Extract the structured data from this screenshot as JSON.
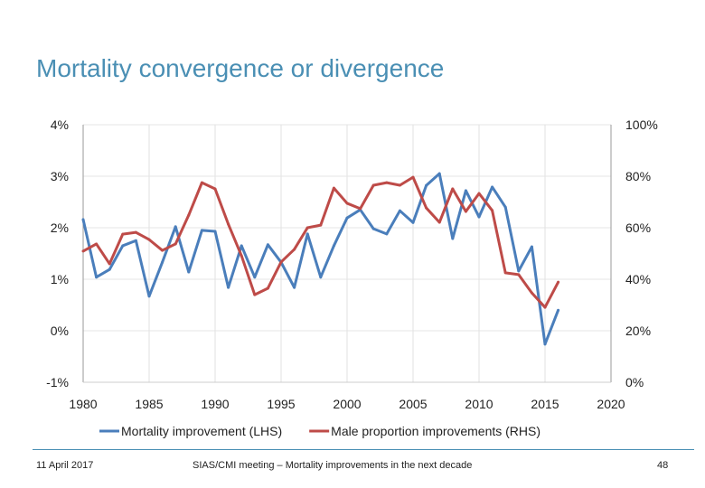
{
  "slide": {
    "title": "Mortality convergence or divergence",
    "footer_date": "11 April 2017",
    "footer_text": "SIAS/CMI meeting – Mortality improvements in the next decade",
    "page_number": "48",
    "accent_color": "#4a8fb4"
  },
  "chart_data": {
    "type": "line",
    "x": [
      1980,
      1981,
      1982,
      1983,
      1984,
      1985,
      1986,
      1987,
      1988,
      1989,
      1990,
      1991,
      1992,
      1993,
      1994,
      1995,
      1996,
      1997,
      1998,
      1999,
      2000,
      2001,
      2002,
      2003,
      2004,
      2005,
      2006,
      2007,
      2008,
      2009,
      2010,
      2011,
      2012,
      2013,
      2014,
      2015,
      2016
    ],
    "xlim": [
      1980,
      2020
    ],
    "xticks": [
      "1980",
      "1985",
      "1990",
      "1995",
      "2000",
      "2005",
      "2010",
      "2015",
      "2020"
    ],
    "ylim_left": [
      -1,
      4
    ],
    "yticks_left": [
      "-1%",
      "0%",
      "1%",
      "2%",
      "3%",
      "4%"
    ],
    "ylim_right": [
      0,
      100
    ],
    "yticks_right": [
      "0%",
      "20%",
      "40%",
      "60%",
      "80%",
      "100%"
    ],
    "grid": true,
    "legend_position": "bottom",
    "series": [
      {
        "name": "Mortality improvement (LHS)",
        "axis": "left",
        "color": "#4a7ebb",
        "values": [
          2.16,
          1.04,
          1.19,
          1.65,
          1.75,
          0.67,
          1.33,
          2.02,
          1.14,
          1.95,
          1.93,
          0.84,
          1.65,
          1.04,
          1.67,
          1.33,
          0.84,
          1.88,
          1.04,
          1.65,
          2.19,
          2.35,
          1.98,
          1.88,
          2.33,
          2.1,
          2.82,
          3.05,
          1.79,
          2.72,
          2.21,
          2.79,
          2.4,
          1.16,
          1.63,
          -0.26,
          0.4
        ]
      },
      {
        "name": "Male proportion improvements (RHS)",
        "axis": "right",
        "color": "#be4b48",
        "values": [
          50.9,
          53.7,
          46,
          57.5,
          58.2,
          55.4,
          51.2,
          53.7,
          64.9,
          77.5,
          75.1,
          61.4,
          49.1,
          34,
          36.5,
          46.7,
          51.6,
          60,
          61,
          75.4,
          69.5,
          67.4,
          76.5,
          77.5,
          76.5,
          79.6,
          67.7,
          62.1,
          75.1,
          66.3,
          73.3,
          66.7,
          42.5,
          41.8,
          34.7,
          29.1,
          38.9
        ]
      }
    ]
  }
}
